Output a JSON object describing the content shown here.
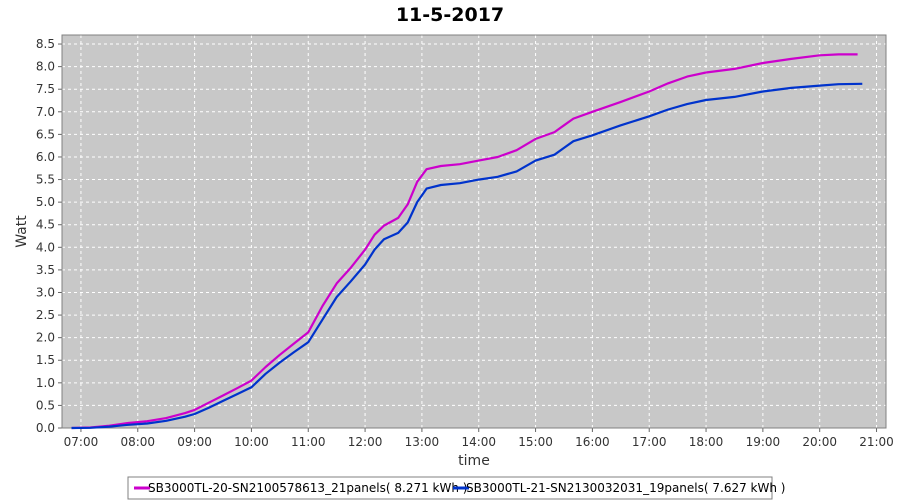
{
  "chart_data": {
    "type": "line",
    "title": "11-5-2017",
    "xlabel": "time",
    "ylabel": "Watt",
    "x_ticks": [
      "07:00",
      "08:00",
      "09:00",
      "10:00",
      "11:00",
      "12:00",
      "13:00",
      "14:00",
      "15:00",
      "16:00",
      "17:00",
      "18:00",
      "19:00",
      "20:00",
      "21:00"
    ],
    "x_range": [
      "06:40",
      "21:10"
    ],
    "y_ticks": [
      "0.0",
      "0.5",
      "1.0",
      "1.5",
      "2.0",
      "2.5",
      "3.0",
      "3.5",
      "4.0",
      "4.5",
      "5.0",
      "5.5",
      "6.0",
      "6.5",
      "7.0",
      "7.5",
      "8.0",
      "8.5"
    ],
    "ylim": [
      0,
      8.7
    ],
    "grid": true,
    "legend_position": "bottom",
    "series": [
      {
        "name": "SB3000TL-20-SN2100578613_21panels( 8.271 kWh )",
        "color": "#cc00cc",
        "points": [
          [
            "06:50",
            0.0
          ],
          [
            "07:10",
            0.01
          ],
          [
            "07:30",
            0.05
          ],
          [
            "07:50",
            0.11
          ],
          [
            "08:10",
            0.15
          ],
          [
            "08:30",
            0.22
          ],
          [
            "08:50",
            0.33
          ],
          [
            "09:00",
            0.4
          ],
          [
            "09:15",
            0.56
          ],
          [
            "09:30",
            0.72
          ],
          [
            "09:45",
            0.88
          ],
          [
            "10:00",
            1.05
          ],
          [
            "10:15",
            1.35
          ],
          [
            "10:30",
            1.62
          ],
          [
            "10:45",
            1.87
          ],
          [
            "11:00",
            2.12
          ],
          [
            "11:15",
            2.7
          ],
          [
            "11:30",
            3.2
          ],
          [
            "11:45",
            3.55
          ],
          [
            "12:00",
            3.95
          ],
          [
            "12:10",
            4.28
          ],
          [
            "12:20",
            4.48
          ],
          [
            "12:35",
            4.65
          ],
          [
            "12:45",
            4.95
          ],
          [
            "12:55",
            5.45
          ],
          [
            "13:05",
            5.73
          ],
          [
            "13:20",
            5.8
          ],
          [
            "13:40",
            5.84
          ],
          [
            "14:00",
            5.92
          ],
          [
            "14:20",
            6.0
          ],
          [
            "14:40",
            6.15
          ],
          [
            "15:00",
            6.4
          ],
          [
            "15:20",
            6.55
          ],
          [
            "15:30",
            6.7
          ],
          [
            "15:40",
            6.85
          ],
          [
            "16:00",
            7.0
          ],
          [
            "16:30",
            7.22
          ],
          [
            "17:00",
            7.45
          ],
          [
            "17:20",
            7.63
          ],
          [
            "17:40",
            7.78
          ],
          [
            "18:00",
            7.87
          ],
          [
            "18:30",
            7.95
          ],
          [
            "19:00",
            8.08
          ],
          [
            "19:30",
            8.17
          ],
          [
            "20:00",
            8.25
          ],
          [
            "20:20",
            8.27
          ],
          [
            "20:40",
            8.27
          ]
        ]
      },
      {
        "name": "SB3000TL-21-SN2130032031_19panels( 7.627 kWh )",
        "color": "#0033cc",
        "points": [
          [
            "06:50",
            0.0
          ],
          [
            "07:10",
            0.005
          ],
          [
            "07:30",
            0.03
          ],
          [
            "07:50",
            0.07
          ],
          [
            "08:10",
            0.1
          ],
          [
            "08:30",
            0.16
          ],
          [
            "08:50",
            0.25
          ],
          [
            "09:00",
            0.31
          ],
          [
            "09:15",
            0.45
          ],
          [
            "09:30",
            0.6
          ],
          [
            "09:45",
            0.75
          ],
          [
            "10:00",
            0.9
          ],
          [
            "10:15",
            1.2
          ],
          [
            "10:30",
            1.45
          ],
          [
            "10:45",
            1.68
          ],
          [
            "11:00",
            1.9
          ],
          [
            "11:15",
            2.4
          ],
          [
            "11:30",
            2.9
          ],
          [
            "11:45",
            3.25
          ],
          [
            "12:00",
            3.62
          ],
          [
            "12:10",
            3.95
          ],
          [
            "12:20",
            4.18
          ],
          [
            "12:35",
            4.32
          ],
          [
            "12:45",
            4.55
          ],
          [
            "12:55",
            5.0
          ],
          [
            "13:05",
            5.3
          ],
          [
            "13:20",
            5.38
          ],
          [
            "13:40",
            5.42
          ],
          [
            "14:00",
            5.5
          ],
          [
            "14:20",
            5.56
          ],
          [
            "14:40",
            5.68
          ],
          [
            "15:00",
            5.92
          ],
          [
            "15:20",
            6.05
          ],
          [
            "15:30",
            6.2
          ],
          [
            "15:40",
            6.35
          ],
          [
            "16:00",
            6.48
          ],
          [
            "16:30",
            6.7
          ],
          [
            "17:00",
            6.9
          ],
          [
            "17:20",
            7.05
          ],
          [
            "17:40",
            7.17
          ],
          [
            "18:00",
            7.26
          ],
          [
            "18:30",
            7.33
          ],
          [
            "19:00",
            7.45
          ],
          [
            "19:30",
            7.53
          ],
          [
            "20:00",
            7.58
          ],
          [
            "20:20",
            7.61
          ],
          [
            "20:45",
            7.62
          ]
        ]
      }
    ]
  }
}
